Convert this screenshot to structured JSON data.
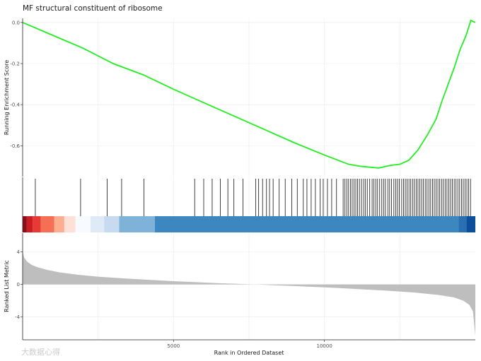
{
  "chart_data": {
    "type": "line",
    "title": "MF structural constituent of ribosome",
    "xlabel": "Rank in Ordered Dataset",
    "x_range": [
      0,
      15000
    ],
    "x_ticks": [
      5000,
      10000
    ],
    "x_tick_labels": [
      "5000",
      "10000"
    ],
    "gridlines": true,
    "panels": [
      {
        "name": "running-enrichment",
        "ylabel": "Running Enrichment Score",
        "ylim": [
          -0.75,
          0.02
        ],
        "y_ticks": [
          0.0,
          -0.2,
          -0.4,
          -0.6
        ],
        "y_tick_labels": [
          "0.0",
          "-0.2",
          "-0.4",
          "-0.6"
        ],
        "line_color": "#22ee22",
        "series": [
          {
            "x": [
              0,
              400,
              800,
              1200,
              2000,
              3000,
              4000,
              5000,
              6000,
              7000,
              8000,
              9000,
              10000,
              10800,
              11200,
              11800,
              12200,
              12500,
              12800,
              13100,
              13400,
              13700,
              13900,
              14100,
              14300,
              14500,
              14700,
              14850,
              15000
            ],
            "y": [
              0.0,
              -0.025,
              -0.05,
              -0.075,
              -0.125,
              -0.2,
              -0.255,
              -0.325,
              -0.39,
              -0.455,
              -0.52,
              -0.585,
              -0.645,
              -0.69,
              -0.7,
              -0.708,
              -0.695,
              -0.69,
              -0.67,
              -0.62,
              -0.55,
              -0.47,
              -0.38,
              -0.3,
              -0.22,
              -0.13,
              -0.06,
              0.01,
              0.0
            ]
          }
        ]
      },
      {
        "name": "gene-hits",
        "hits": [
          420,
          1920,
          2800,
          3280,
          4020,
          5700,
          6000,
          6280,
          6550,
          6800,
          7000,
          7300,
          7720,
          7820,
          7950,
          8080,
          8180,
          8300,
          8500,
          8700,
          8920,
          9100,
          9300,
          9420,
          9560,
          9700,
          9860,
          9960,
          10100,
          10240,
          10400,
          10620,
          10680,
          10740,
          10800,
          10860,
          10920,
          10980,
          11040,
          11100,
          11160,
          11230,
          11300,
          11360,
          11420,
          11500,
          11580,
          11640,
          11700,
          11760,
          11830,
          11900,
          11960,
          12020,
          12100,
          12160,
          12220,
          12300,
          12360,
          12420,
          12480,
          12560,
          12620,
          12680,
          12740,
          12800,
          12860,
          12920,
          12980,
          13040,
          13100,
          13160,
          13220,
          13280,
          13340,
          13400,
          13460,
          13520,
          13580,
          13640,
          13700,
          13760,
          13820,
          13880,
          13940,
          14000,
          14060,
          14120,
          14180,
          14240,
          14300,
          14360,
          14420,
          14480,
          14540,
          14600,
          14660,
          14720,
          14780,
          14840
        ],
        "heat_bands": [
          {
            "from": 0,
            "to": 130,
            "color": "#8b0e1a"
          },
          {
            "from": 130,
            "to": 330,
            "color": "#c81d22"
          },
          {
            "from": 330,
            "to": 600,
            "color": "#e83a34"
          },
          {
            "from": 600,
            "to": 1050,
            "color": "#f56f55"
          },
          {
            "from": 1050,
            "to": 1380,
            "color": "#fcae91"
          },
          {
            "from": 1380,
            "to": 1750,
            "color": "#fde0d6"
          },
          {
            "from": 1750,
            "to": 2250,
            "color": "#f7fafe"
          },
          {
            "from": 2250,
            "to": 2700,
            "color": "#deebf7"
          },
          {
            "from": 2700,
            "to": 3200,
            "color": "#c6dbef"
          },
          {
            "from": 3200,
            "to": 4380,
            "color": "#7fb2d9"
          },
          {
            "from": 4380,
            "to": 14450,
            "color": "#3d87c0"
          },
          {
            "from": 14450,
            "to": 14700,
            "color": "#2a6fb2"
          },
          {
            "from": 14700,
            "to": 15000,
            "color": "#0b4f9a"
          }
        ]
      },
      {
        "name": "ranked-list-metric",
        "ylabel": "Ranked List Metric",
        "ylim": [
          -6.8,
          6.3
        ],
        "y_ticks": [
          4,
          0,
          -4
        ],
        "y_tick_labels": [
          "4",
          "0",
          "-4"
        ],
        "fill_color": "#bebebe",
        "series": [
          {
            "x": [
              0,
              50,
              150,
              300,
              500,
              800,
              1200,
              1800,
              2500,
              3500,
              5000,
              6500,
              7700,
              9000,
              10500,
              12000,
              13000,
              13800,
              14300,
              14600,
              14800,
              14920,
              15000
            ],
            "y": [
              4.1,
              3.3,
              2.8,
              2.4,
              2.1,
              1.8,
              1.5,
              1.2,
              0.95,
              0.7,
              0.4,
              0.15,
              0.0,
              -0.2,
              -0.45,
              -0.75,
              -1.0,
              -1.3,
              -1.6,
              -2.0,
              -2.5,
              -3.3,
              -6.3
            ]
          }
        ]
      }
    ]
  },
  "watermark": "大数据心得"
}
